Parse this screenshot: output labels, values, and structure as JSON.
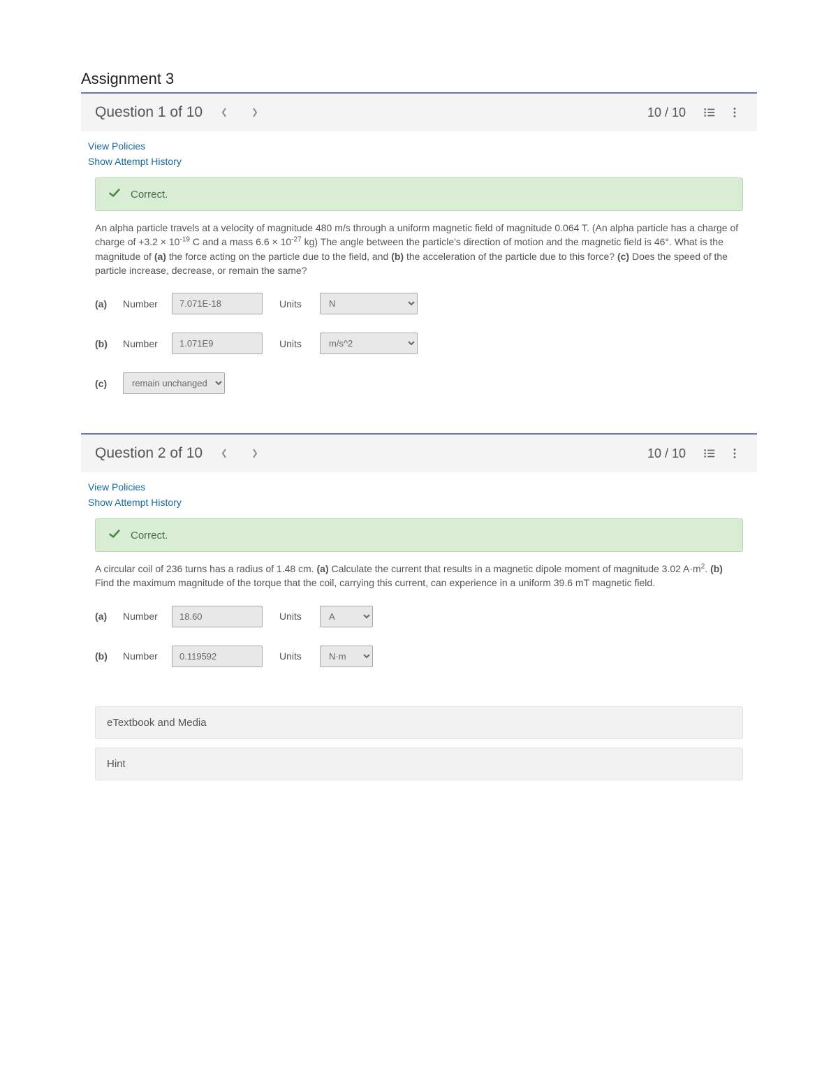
{
  "assignment": {
    "title": "Assignment 3"
  },
  "questions": [
    {
      "title": "Question 1 of 10",
      "score": "10 / 10",
      "links": {
        "policies": "View Policies",
        "history": "Show Attempt History"
      },
      "status": "Correct.",
      "text_html": "An alpha particle travels at a velocity of magnitude 480 m/s through a uniform magnetic field of magnitude 0.064 T. (An alpha particle has a charge of charge of +3.2 × 10<sup>-19</sup> C and a mass 6.6 × 10<sup>-27</sup> kg) The angle between the particle's direction of motion and the magnetic field is 46°. What is the magnitude of <b>(a)</b> the force acting on the particle due to the field, and <b>(b)</b> the acceleration of the particle due to this force? <b>(c)</b> Does the speed of the particle increase, decrease, or remain the same?",
      "parts": [
        {
          "label": "(a)",
          "number_label": "Number",
          "value": "7.071E-18",
          "units_label": "Units",
          "units": "N",
          "units_width": "wide"
        },
        {
          "label": "(b)",
          "number_label": "Number",
          "value": "1.071E9",
          "units_label": "Units",
          "units": "m/s^2",
          "units_width": "wide"
        },
        {
          "label": "(c)",
          "choice": "remain unchanged"
        }
      ]
    },
    {
      "title": "Question 2 of 10",
      "score": "10 / 10",
      "links": {
        "policies": "View Policies",
        "history": "Show Attempt History"
      },
      "status": "Correct.",
      "text_html": "A circular coil of 236 turns has a radius of 1.48 cm. <b>(a)</b> Calculate the current that results in a magnetic dipole moment of magnitude 3.02 A·m<sup>2</sup>. <b>(b)</b> Find the maximum magnitude of the torque that the coil, carrying this current, can experience in a uniform 39.6 mT magnetic field.",
      "parts": [
        {
          "label": "(a)",
          "number_label": "Number",
          "value": "18.60",
          "units_label": "Units",
          "units": "A",
          "units_width": "med"
        },
        {
          "label": "(b)",
          "number_label": "Number",
          "value": "0.119592",
          "units_label": "Units",
          "units": "N·m",
          "units_width": "med"
        }
      ],
      "panels": [
        {
          "label": "eTextbook and Media"
        },
        {
          "label": "Hint"
        }
      ]
    }
  ],
  "colors": {
    "accent_border": "#6a7aa8",
    "link": "#1a6b9f",
    "correct_bg": "#d9ecd4",
    "correct_border": "#b8d9b0",
    "input_bg": "#e8e8e8",
    "input_border": "#a8a8a8",
    "header_bg": "#f4f4f4"
  }
}
